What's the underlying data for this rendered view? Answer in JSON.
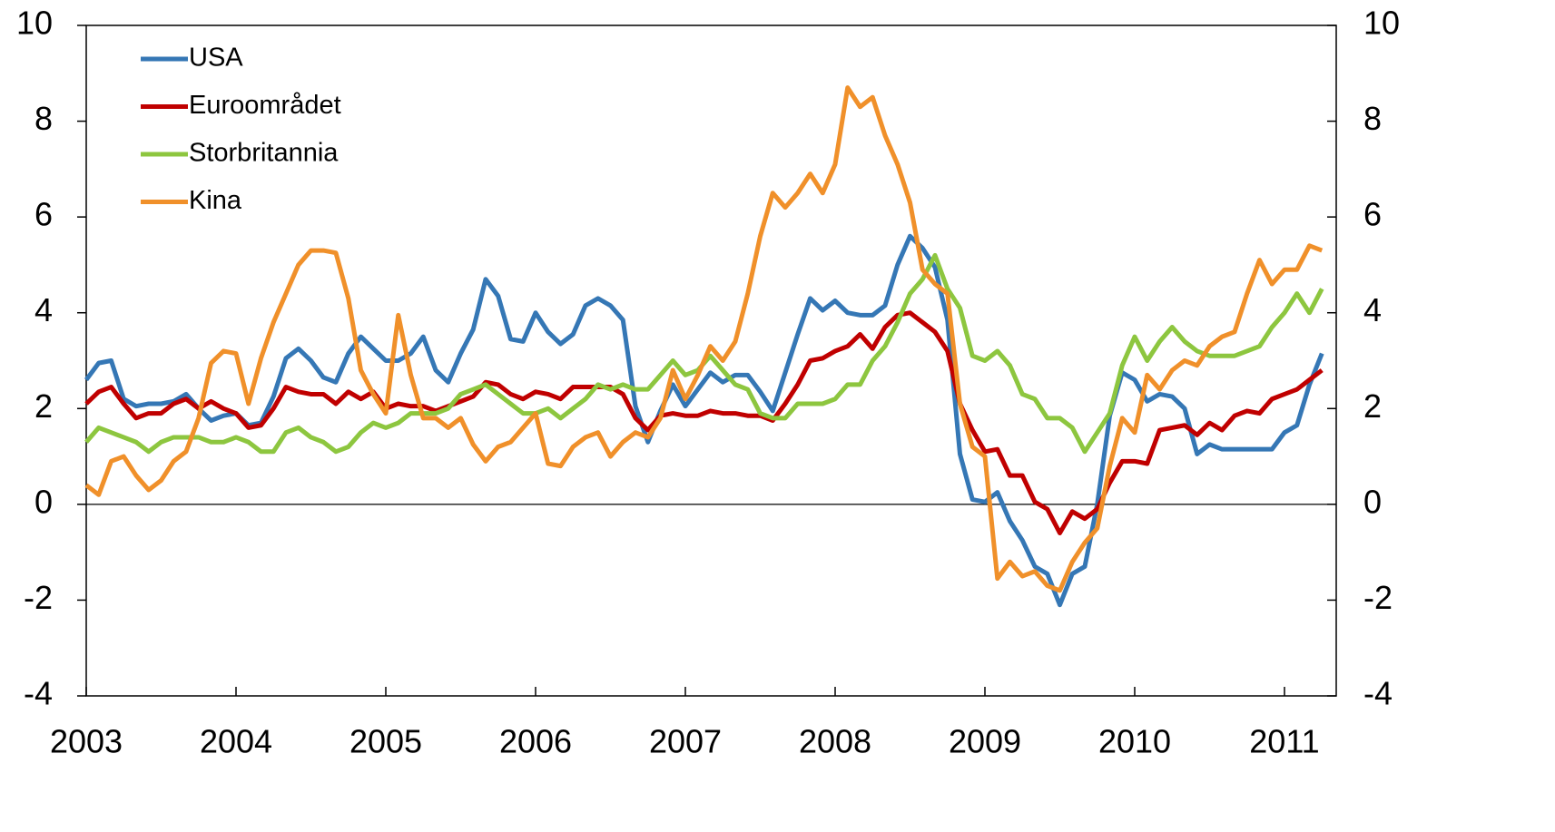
{
  "chart_data": {
    "type": "line",
    "categories": [
      "2003",
      null,
      null,
      null,
      null,
      null,
      null,
      null,
      null,
      null,
      null,
      null,
      "2004",
      null,
      null,
      null,
      null,
      null,
      null,
      null,
      null,
      null,
      null,
      null,
      "2005",
      null,
      null,
      null,
      null,
      null,
      null,
      null,
      null,
      null,
      null,
      null,
      "2006",
      null,
      null,
      null,
      null,
      null,
      null,
      null,
      null,
      null,
      null,
      null,
      "2007",
      null,
      null,
      null,
      null,
      null,
      null,
      null,
      null,
      null,
      null,
      null,
      "2008",
      null,
      null,
      null,
      null,
      null,
      null,
      null,
      null,
      null,
      null,
      null,
      "2009",
      null,
      null,
      null,
      null,
      null,
      null,
      null,
      null,
      null,
      null,
      null,
      "2010",
      null,
      null,
      null,
      null,
      null,
      null,
      null,
      null,
      null,
      null,
      null,
      "2011",
      null,
      null,
      null
    ],
    "series": [
      {
        "name": "USA",
        "color": "#3577b5",
        "values": [
          2.6,
          2.95,
          3.0,
          2.2,
          2.05,
          2.1,
          2.1,
          2.15,
          2.3,
          2.0,
          1.75,
          1.85,
          1.9,
          1.65,
          1.7,
          2.25,
          3.05,
          3.25,
          3.0,
          2.65,
          2.55,
          3.15,
          3.5,
          3.25,
          3.0,
          3.0,
          3.15,
          3.5,
          2.8,
          2.55,
          3.15,
          3.65,
          4.7,
          4.35,
          3.45,
          3.4,
          4.0,
          3.6,
          3.35,
          3.55,
          4.15,
          4.3,
          4.15,
          3.85,
          2.05,
          1.3,
          1.95,
          2.5,
          2.05,
          2.4,
          2.75,
          2.55,
          2.7,
          2.7,
          2.35,
          1.95,
          2.75,
          3.55,
          4.3,
          4.05,
          4.25,
          4.0,
          3.95,
          3.95,
          4.15,
          5.0,
          5.6,
          5.35,
          4.95,
          3.85,
          1.05,
          0.1,
          0.05,
          0.25,
          -0.35,
          -0.75,
          -1.3,
          -1.45,
          -2.1,
          -1.45,
          -1.3,
          0.0,
          1.85,
          2.75,
          2.6,
          2.15,
          2.3,
          2.25,
          2.0,
          1.05,
          1.25,
          1.15,
          1.15,
          1.15,
          1.15,
          1.15,
          1.5,
          1.65,
          2.5,
          3.15
        ]
      },
      {
        "name": "Euroområdet",
        "color": "#c00000",
        "values": [
          2.1,
          2.35,
          2.45,
          2.1,
          1.8,
          1.9,
          1.9,
          2.1,
          2.2,
          2.0,
          2.15,
          2.0,
          1.9,
          1.6,
          1.65,
          2.0,
          2.45,
          2.35,
          2.3,
          2.3,
          2.1,
          2.35,
          2.2,
          2.35,
          2.0,
          2.1,
          2.05,
          2.05,
          1.95,
          2.05,
          2.15,
          2.25,
          2.55,
          2.5,
          2.3,
          2.2,
          2.35,
          2.3,
          2.2,
          2.45,
          2.45,
          2.45,
          2.45,
          2.3,
          1.8,
          1.55,
          1.85,
          1.9,
          1.85,
          1.85,
          1.95,
          1.9,
          1.9,
          1.85,
          1.85,
          1.75,
          2.1,
          2.5,
          3.0,
          3.05,
          3.2,
          3.3,
          3.55,
          3.25,
          3.7,
          3.95,
          4.0,
          3.8,
          3.6,
          3.2,
          2.1,
          1.55,
          1.1,
          1.15,
          0.6,
          0.6,
          0.05,
          -0.1,
          -0.6,
          -0.15,
          -0.3,
          -0.1,
          0.45,
          0.9,
          0.9,
          0.85,
          1.55,
          1.6,
          1.65,
          1.45,
          1.7,
          1.55,
          1.85,
          1.95,
          1.9,
          2.2,
          2.3,
          2.4,
          2.6,
          2.8
        ]
      },
      {
        "name": "Storbritannia",
        "color": "#8dc63f",
        "values": [
          1.3,
          1.6,
          1.5,
          1.4,
          1.3,
          1.1,
          1.3,
          1.4,
          1.4,
          1.4,
          1.3,
          1.3,
          1.4,
          1.3,
          1.1,
          1.1,
          1.5,
          1.6,
          1.4,
          1.3,
          1.1,
          1.2,
          1.5,
          1.7,
          1.6,
          1.7,
          1.9,
          1.9,
          1.9,
          2.0,
          2.3,
          2.4,
          2.5,
          2.3,
          2.1,
          1.9,
          1.9,
          2.0,
          1.8,
          2.0,
          2.2,
          2.5,
          2.4,
          2.5,
          2.4,
          2.4,
          2.7,
          3.0,
          2.7,
          2.8,
          3.1,
          2.8,
          2.5,
          2.4,
          1.9,
          1.8,
          1.8,
          2.1,
          2.1,
          2.1,
          2.2,
          2.5,
          2.5,
          3.0,
          3.3,
          3.8,
          4.4,
          4.7,
          5.2,
          4.5,
          4.1,
          3.1,
          3.0,
          3.2,
          2.9,
          2.3,
          2.2,
          1.8,
          1.8,
          1.6,
          1.1,
          1.5,
          1.9,
          2.9,
          3.5,
          3.0,
          3.4,
          3.7,
          3.4,
          3.2,
          3.1,
          3.1,
          3.1,
          3.2,
          3.3,
          3.7,
          4.0,
          4.4,
          4.0,
          4.5
        ]
      },
      {
        "name": "Kina",
        "color": "#f0902a",
        "values": [
          0.4,
          0.2,
          0.9,
          1.0,
          0.6,
          0.3,
          0.5,
          0.9,
          1.1,
          1.8,
          2.95,
          3.2,
          3.15,
          2.1,
          3.05,
          3.8,
          4.4,
          5.0,
          5.3,
          5.3,
          5.25,
          4.3,
          2.8,
          2.3,
          1.9,
          3.95,
          2.7,
          1.8,
          1.8,
          1.6,
          1.8,
          1.25,
          0.9,
          1.2,
          1.3,
          1.6,
          1.9,
          0.85,
          0.8,
          1.2,
          1.4,
          1.5,
          1.0,
          1.3,
          1.5,
          1.4,
          1.8,
          2.8,
          2.2,
          2.7,
          3.3,
          3.0,
          3.4,
          4.4,
          5.6,
          6.5,
          6.2,
          6.5,
          6.9,
          6.5,
          7.1,
          8.7,
          8.3,
          8.5,
          7.7,
          7.1,
          6.3,
          4.9,
          4.6,
          4.4,
          2.1,
          1.2,
          1.0,
          -1.55,
          -1.2,
          -1.5,
          -1.4,
          -1.7,
          -1.8,
          -1.2,
          -0.8,
          -0.5,
          0.8,
          1.8,
          1.5,
          2.7,
          2.4,
          2.8,
          3.0,
          2.9,
          3.3,
          3.5,
          3.6,
          4.4,
          5.1,
          4.6,
          4.9,
          4.9,
          5.4,
          5.3
        ]
      }
    ],
    "ylim": [
      -4,
      10
    ],
    "yticks": [
      -4,
      -2,
      0,
      2,
      4,
      6,
      8,
      10
    ],
    "y2lim": [
      -4,
      10
    ],
    "y2ticks": [
      -4,
      -2,
      0,
      2,
      4,
      6,
      8,
      10
    ],
    "legend": "upper left"
  }
}
